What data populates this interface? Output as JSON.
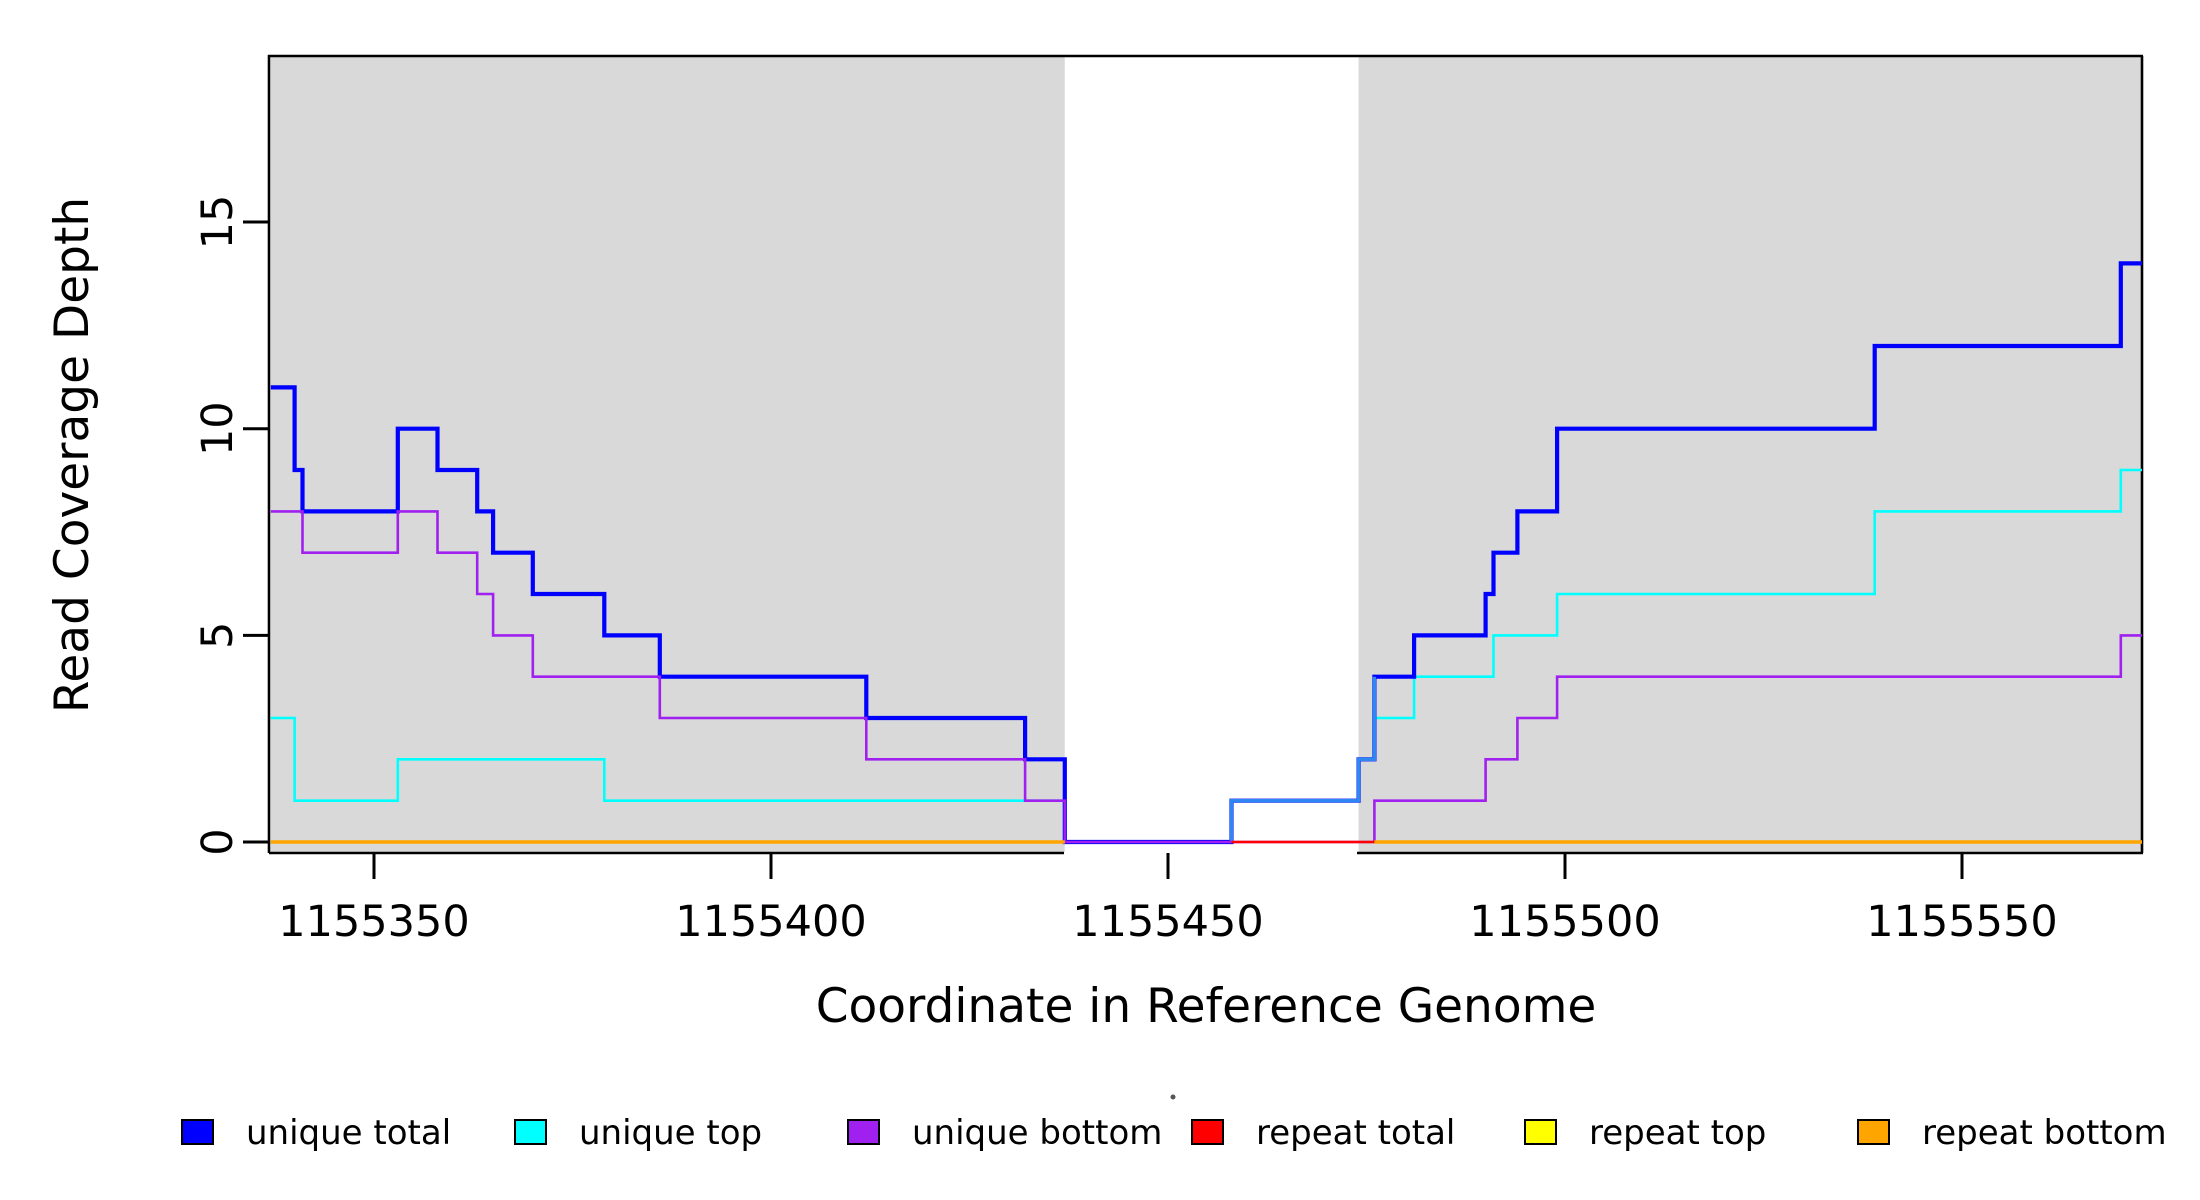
{
  "figure": {
    "background_color": "#ffffff",
    "panel_color": "#D9D9D9",
    "axis_color": "#000000"
  },
  "y_axis": {
    "label": "Read Coverage Depth",
    "ticks": [
      "0",
      "5",
      "10",
      "15"
    ],
    "tick_values": [
      0,
      5,
      10,
      15
    ]
  },
  "x_axis": {
    "label": "Coordinate in Reference Genome",
    "ticks": [
      "1155350",
      "1155400",
      "1155450",
      "1155500",
      "1155550"
    ],
    "tick_values": [
      1155350,
      1155400,
      1155450,
      1155500,
      1155550
    ]
  },
  "legend": {
    "items": [
      {
        "label": "unique total",
        "color": "#0000FF"
      },
      {
        "label": "unique top",
        "color": "#00FFFF"
      },
      {
        "label": "unique bottom",
        "color": "#A020F0"
      },
      {
        "label": "repeat total",
        "color": "#FF0000"
      },
      {
        "label": "repeat top",
        "color": "#FFFF00"
      },
      {
        "label": "repeat bottom",
        "color": "#FFA500"
      }
    ]
  },
  "chart_data": {
    "type": "line",
    "subtype": "step-coverage",
    "title": "",
    "xlabel": "Coordinate in Reference Genome",
    "ylabel": "Read Coverage Depth",
    "xlim": [
      1155337,
      1155573
    ],
    "ylim": [
      0,
      19
    ],
    "grid": false,
    "legend_position": "bottom",
    "shaded_regions": [
      {
        "name": "unique-mappable-region-1",
        "from": 1155337,
        "to": 1155437
      },
      {
        "name": "unique-mappable-region-2",
        "from": 1155474,
        "to": 1155573
      }
    ],
    "series": [
      {
        "name": "unique total",
        "color": "#0000FF",
        "width": 4.2,
        "points": [
          [
            1155337,
            11
          ],
          [
            1155340,
            9
          ],
          [
            1155341,
            8
          ],
          [
            1155353,
            10
          ],
          [
            1155358,
            9
          ],
          [
            1155363,
            8
          ],
          [
            1155365,
            7
          ],
          [
            1155370,
            6
          ],
          [
            1155379,
            5
          ],
          [
            1155386,
            4
          ],
          [
            1155412,
            3
          ],
          [
            1155432,
            2
          ],
          [
            1155437,
            0
          ],
          [
            1155458,
            1
          ],
          [
            1155474,
            2
          ],
          [
            1155476,
            4
          ],
          [
            1155481,
            5
          ],
          [
            1155490,
            6
          ],
          [
            1155491,
            7
          ],
          [
            1155494,
            8
          ],
          [
            1155499,
            10
          ],
          [
            1155539,
            12
          ],
          [
            1155570,
            14
          ]
        ]
      },
      {
        "name": "unique top",
        "color": "#00FFFF",
        "width": 2.6,
        "points": [
          [
            1155337,
            3
          ],
          [
            1155340,
            1
          ],
          [
            1155353,
            2
          ],
          [
            1155379,
            1
          ],
          [
            1155437,
            0
          ],
          [
            1155458,
            1
          ],
          [
            1155474,
            2
          ],
          [
            1155476,
            3
          ],
          [
            1155481,
            4
          ],
          [
            1155491,
            5
          ],
          [
            1155499,
            6
          ],
          [
            1155539,
            8
          ],
          [
            1155570,
            9
          ]
        ]
      },
      {
        "name": "unique bottom",
        "color": "#A020F0",
        "width": 2.6,
        "points": [
          [
            1155337,
            8
          ],
          [
            1155341,
            7
          ],
          [
            1155353,
            8
          ],
          [
            1155358,
            7
          ],
          [
            1155363,
            6
          ],
          [
            1155365,
            5
          ],
          [
            1155370,
            4
          ],
          [
            1155386,
            3
          ],
          [
            1155412,
            2
          ],
          [
            1155432,
            1
          ],
          [
            1155437,
            0
          ],
          [
            1155476,
            1
          ],
          [
            1155490,
            2
          ],
          [
            1155494,
            3
          ],
          [
            1155499,
            4
          ],
          [
            1155570,
            5
          ]
        ]
      },
      {
        "name": "repeat total",
        "color": "#FF0000",
        "width": 2.4,
        "points": [
          [
            1155458,
            0
          ]
        ]
      },
      {
        "name": "repeat top",
        "color": "#FFFF00",
        "width": 2.4,
        "points": [
          [
            1155337,
            0
          ]
        ],
        "draw_segments": [
          [
            1155337,
            1155437
          ],
          [
            1155476,
            1155573
          ]
        ]
      },
      {
        "name": "repeat bottom",
        "color": "#FFA500",
        "width": 3.6,
        "points": [
          [
            1155337,
            0
          ]
        ],
        "draw_segments": [
          [
            1155337,
            1155437
          ],
          [
            1155476,
            1155573
          ]
        ]
      }
    ],
    "overlap_highlight": {
      "note": "unique total drawn over unique top between regions",
      "color": "#2E86F0",
      "width": 3.4,
      "path": [
        [
          1155458,
          0
        ],
        [
          1155458,
          1
        ],
        [
          1155474,
          1
        ],
        [
          1155474,
          2
        ],
        [
          1155476,
          2
        ],
        [
          1155476,
          4
        ]
      ]
    }
  }
}
